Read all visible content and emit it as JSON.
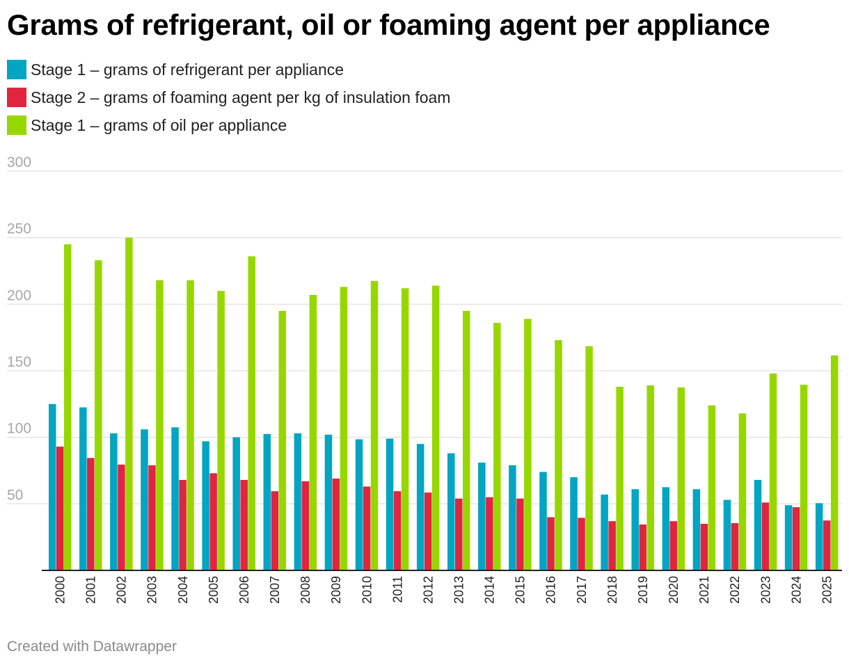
{
  "chart_data": {
    "type": "bar",
    "title": "Grams of refrigerant, oil or foaming agent per appliance",
    "xlabel": "",
    "ylabel": "",
    "ylim": [
      0,
      300
    ],
    "yticks": [
      50,
      100,
      150,
      200,
      250,
      300
    ],
    "grid": true,
    "legend_position": "top-left",
    "categories": [
      "2000",
      "2001",
      "2002",
      "2003",
      "2004",
      "2005",
      "2006",
      "2007",
      "2008",
      "2009",
      "2010",
      "2011",
      "2012",
      "2013",
      "2014",
      "2015",
      "2016",
      "2017",
      "2018",
      "2019",
      "2020",
      "2021",
      "2022",
      "2023",
      "2024",
      "2025"
    ],
    "series": [
      {
        "name": "Stage 1 – grams of refrigerant per appliance",
        "color": "#02a5c2",
        "values": [
          125,
          122.5,
          103,
          106,
          107.5,
          97,
          100,
          102.5,
          103,
          102,
          98.5,
          99,
          95,
          88,
          81,
          79,
          74,
          70,
          57,
          61,
          62.5,
          61,
          53,
          68,
          49,
          50.5
        ]
      },
      {
        "name": "Stage 2 – grams of foaming agent per kg of insulation foam",
        "color": "#e0253e",
        "values": [
          93,
          84.5,
          79.5,
          79,
          68,
          73,
          68,
          59.5,
          67,
          69,
          63,
          59.5,
          58.5,
          54,
          55,
          54,
          40,
          39.5,
          37,
          34.5,
          37,
          35,
          35.5,
          51,
          47.5,
          37.5
        ]
      },
      {
        "name": "Stage 1 – grams of oil per appliance",
        "color": "#97d700",
        "values": [
          245,
          233,
          250,
          218,
          218,
          210,
          236,
          195,
          207,
          213,
          217.5,
          212,
          214,
          195,
          186,
          189,
          173,
          168.5,
          138,
          139,
          137.5,
          124,
          118,
          148,
          139.5,
          161.5
        ]
      }
    ]
  },
  "footer": "Created with Datawrapper"
}
